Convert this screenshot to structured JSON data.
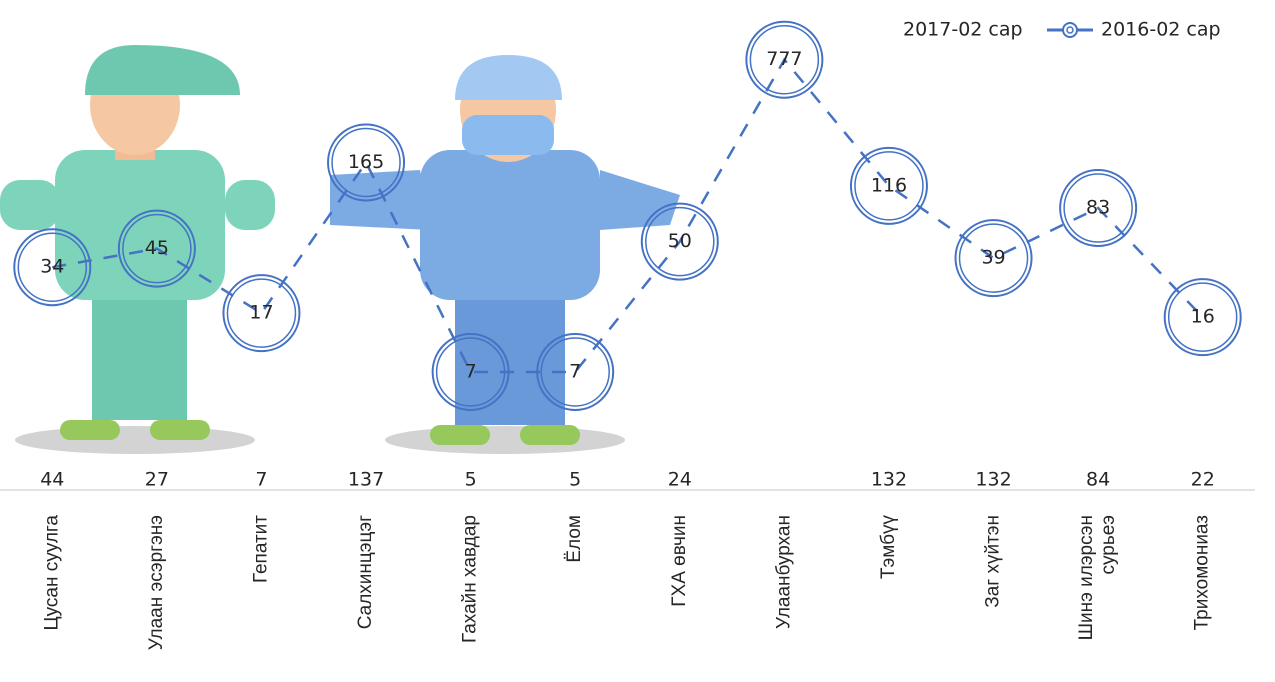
{
  "chart_data": {
    "type": "line",
    "categories": [
      "Цусан суулга",
      "Улаан эсэргэнэ",
      "Гепатит",
      "Салхинцэцэг",
      "Гахайн хавдар",
      "Ёлом",
      "ГХА өвчин",
      "Улаанбурхан",
      "Тэмбүү",
      "Заг хүйтэн",
      "Шинэ илэрсэн сурьеэ",
      "Трихомониаз"
    ],
    "series": [
      {
        "name": "2017-02 сар",
        "color": "#262626",
        "values": [
          44,
          27,
          7,
          137,
          5,
          5,
          24,
          null,
          132,
          132,
          84,
          22
        ]
      },
      {
        "name": "2016-02 сар",
        "color": "#4472c4",
        "values": [
          34,
          45,
          17,
          165,
          7,
          7,
          50,
          777,
          116,
          39,
          83,
          16
        ]
      }
    ],
    "log_scale": true,
    "ylim": [
      1,
      1000
    ],
    "legend": "top-right"
  }
}
